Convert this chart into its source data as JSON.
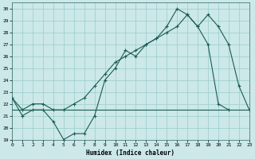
{
  "xlabel": "Humidex (Indice chaleur)",
  "background_color": "#cce8e8",
  "grid_color": "#99cccc",
  "line_color": "#1a5c52",
  "xlim": [
    0,
    23
  ],
  "ylim": [
    19,
    30.5
  ],
  "yticks": [
    19,
    20,
    21,
    22,
    23,
    24,
    25,
    26,
    27,
    28,
    29,
    30
  ],
  "xticks": [
    0,
    1,
    2,
    3,
    4,
    5,
    6,
    7,
    8,
    9,
    10,
    11,
    12,
    13,
    14,
    15,
    16,
    17,
    18,
    19,
    20,
    21,
    22,
    23
  ],
  "line1_x": [
    0,
    1,
    2,
    3,
    4,
    5,
    6,
    7,
    8,
    9,
    10,
    11,
    12,
    13,
    14,
    15,
    16,
    17,
    18,
    19,
    20,
    21
  ],
  "line1_y": [
    22.5,
    21.0,
    21.5,
    21.5,
    20.5,
    19.0,
    19.5,
    19.5,
    21.0,
    24.0,
    25.0,
    26.5,
    26.0,
    27.0,
    27.5,
    28.5,
    30.0,
    29.5,
    28.5,
    27.0,
    22.0,
    21.5
  ],
  "line2_x": [
    0,
    1,
    2,
    3,
    4,
    5,
    6,
    7,
    8,
    9,
    10,
    11,
    12,
    13,
    14,
    15,
    16,
    17,
    18,
    19,
    20,
    21,
    22,
    23
  ],
  "line2_y": [
    22.5,
    21.5,
    22.0,
    22.0,
    21.5,
    21.5,
    22.0,
    22.5,
    23.5,
    24.5,
    25.5,
    26.0,
    26.5,
    27.0,
    27.5,
    28.0,
    28.5,
    29.5,
    28.5,
    29.5,
    28.5,
    27.0,
    23.5,
    21.5
  ],
  "line3_x": [
    0,
    23
  ],
  "line3_y": [
    21.5,
    21.5
  ]
}
